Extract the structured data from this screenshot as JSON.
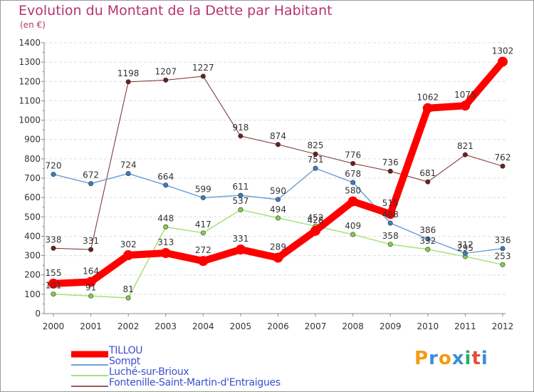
{
  "title": "Evolution du Montant de la Dette par Habitant",
  "subtitle": "(en €)",
  "logo": {
    "text": "Proxiti",
    "letters": [
      {
        "ch": "P",
        "color": "#f39c12"
      },
      {
        "ch": "r",
        "color": "#3b8ed8"
      },
      {
        "ch": "o",
        "color": "#f39c12"
      },
      {
        "ch": "x",
        "color": "#3b8ed8"
      },
      {
        "ch": "i",
        "color": "#27ae60"
      },
      {
        "ch": "t",
        "color": "#e74c3c"
      },
      {
        "ch": "i",
        "color": "#3b8ed8"
      }
    ]
  },
  "chart_data": {
    "type": "line",
    "x": [
      "2000",
      "2001",
      "2002",
      "2003",
      "2004",
      "2005",
      "2006",
      "2007",
      "2008",
      "2009",
      "2010",
      "2011",
      "2012"
    ],
    "ylim": [
      0,
      1400
    ],
    "yticks": [
      0,
      100,
      200,
      300,
      400,
      500,
      600,
      700,
      800,
      900,
      1000,
      1100,
      1200,
      1300,
      1400
    ],
    "grid": "horizontal",
    "legend_position": "bottom-left",
    "series": [
      {
        "name": "Fontenille-Saint-Martin-d'Entraigues",
        "color": "#7a2a2a",
        "marker": "#6b1f1f",
        "width": 1,
        "values": [
          338,
          331,
          1198,
          1207,
          1227,
          918,
          874,
          825,
          776,
          736,
          681,
          821,
          762
        ],
        "labels": [
          "338",
          "331",
          "1198",
          "1207",
          "1227",
          "918",
          "874",
          "825",
          "776",
          "736",
          "681",
          "821",
          "762"
        ]
      },
      {
        "name": "Luché-sur-Brioux",
        "color": "#a8e07a",
        "marker": "#7fd04a",
        "width": 1.5,
        "values": [
          101,
          91,
          81,
          448,
          417,
          537,
          494,
          452,
          409,
          358,
          332,
          295,
          253
        ],
        "labels": [
          "101",
          "91",
          "81",
          "448",
          "417",
          "537",
          "494",
          "452",
          "409",
          "358",
          "332",
          "295",
          "253"
        ]
      },
      {
        "name": "Sompt",
        "color": "#6fa3d6",
        "marker": "#3a7fc0",
        "width": 1.5,
        "values": [
          720,
          672,
          724,
          664,
          599,
          611,
          590,
          751,
          678,
          468,
          386,
          312,
          336
        ],
        "labels": [
          "720",
          "672",
          "724",
          "664",
          "599",
          "611",
          "590",
          "751",
          "678",
          "468",
          "386",
          "312",
          "336"
        ]
      },
      {
        "name": "TILLOU",
        "color": "#ff0000",
        "marker": "#ff0000",
        "width": 10,
        "values": [
          155,
          164,
          302,
          313,
          272,
          331,
          289,
          428,
          580,
          515,
          1062,
          1075,
          1302
        ],
        "labels": [
          "155",
          "164",
          "302",
          "313",
          "272",
          "331",
          "289",
          "428",
          "580",
          "515",
          "1062",
          "1075",
          "1302"
        ]
      }
    ]
  }
}
